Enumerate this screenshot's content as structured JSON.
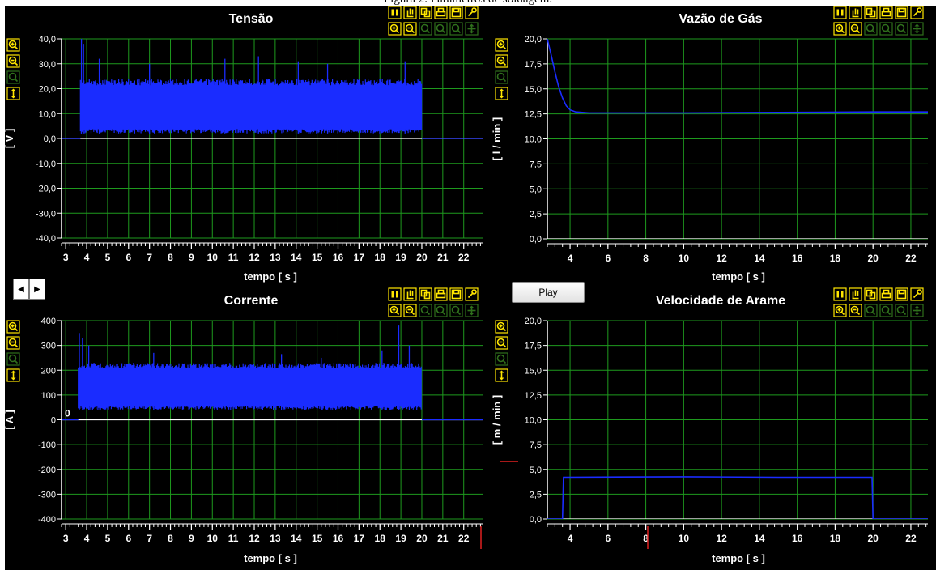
{
  "caption": "Figura 2. Parâmetros de soldagem.",
  "play_label": "Play",
  "scroll": {
    "left_icon": "arrow-left-icon",
    "right_icon": "arrow-right-icon"
  },
  "toolbar_icons": {
    "top": [
      "pause-icon",
      "hand-pan-icon",
      "copy-icon",
      "print-icon",
      "save-icon",
      "wrench-icon"
    ],
    "bottom": [
      "zoom-in-icon",
      "zoom-out-icon",
      "zoom-reset-icon",
      "zoom-box-icon",
      "zoom-fit-icon",
      "move-icon"
    ],
    "side": [
      "zoom-in-icon",
      "zoom-out-icon",
      "zoom-reset-icon",
      "auto-scale-icon"
    ]
  },
  "colors": {
    "background": "#000000",
    "grid": "#1e9a1e",
    "signal": "#1a2cff",
    "zero_line": "#ffffff",
    "text": "#ffffff",
    "toolbar_active": "#ffe600",
    "toolbar_inactive": "#2f6f1c"
  },
  "chart_data": [
    {
      "id": "tensao",
      "type": "line",
      "title": "Tensão",
      "ylabel": "[ V ]",
      "xlabel": "tempo [ s ]",
      "xlim": [
        2.8,
        22.9
      ],
      "ylim": [
        -40,
        40
      ],
      "xticks": [
        3,
        4,
        5,
        6,
        7,
        8,
        9,
        10,
        11,
        12,
        13,
        14,
        15,
        16,
        17,
        18,
        19,
        20,
        21,
        22
      ],
      "xtick_labels": [
        "3",
        "4",
        "5",
        "6",
        "7",
        "8",
        "9",
        "10",
        "11",
        "12",
        "13",
        "14",
        "15",
        "16",
        "17",
        "18",
        "19",
        "20",
        "21",
        "22"
      ],
      "yticks": [
        -40,
        -30,
        -20,
        -10,
        0,
        10,
        20,
        30,
        40
      ],
      "ytick_labels": [
        "-40,0",
        "-30,0",
        "-20,0",
        "-10,0",
        "0,0",
        "10,0",
        "20,0",
        "30,0",
        "40,0"
      ],
      "series": [
        {
          "kind": "band",
          "segments": [
            {
              "x": [
                2.8,
                3.7
              ],
              "low": 0,
              "high": 0
            },
            {
              "x": [
                3.7,
                20.0
              ],
              "low": 2,
              "high": 24,
              "spikes": [
                [
                  3.75,
                  40
                ],
                [
                  3.85,
                  38
                ],
                [
                  4.6,
                  32
                ],
                [
                  7.0,
                  30
                ],
                [
                  10.6,
                  32
                ],
                [
                  12.2,
                  33
                ],
                [
                  14.1,
                  31
                ],
                [
                  15.5,
                  30
                ],
                [
                  19.2,
                  31
                ]
              ]
            },
            {
              "x": [
                20.0,
                22.9
              ],
              "low": 0,
              "high": 0
            }
          ]
        }
      ],
      "grid": true
    },
    {
      "id": "vazao",
      "type": "line",
      "title": "Vazão de Gás",
      "ylabel": "[ l / min ]",
      "xlabel": "tempo [ s ]",
      "xlim": [
        2.8,
        22.9
      ],
      "ylim": [
        0,
        20
      ],
      "xticks": [
        4,
        6,
        8,
        10,
        12,
        14,
        16,
        18,
        20,
        22
      ],
      "xtick_labels": [
        "4",
        "6",
        "8",
        "10",
        "12",
        "14",
        "16",
        "18",
        "20",
        "22"
      ],
      "yticks": [
        0,
        2.5,
        5,
        7.5,
        10,
        12.5,
        15,
        17.5,
        20
      ],
      "ytick_labels": [
        "0,0",
        "2,5",
        "5,0",
        "7,5",
        "10,0",
        "12,5",
        "15,0",
        "17,5",
        "20,0"
      ],
      "series": [
        {
          "kind": "line",
          "x": [
            2.8,
            3.0,
            3.2,
            3.4,
            3.6,
            3.8,
            4.0,
            4.3,
            5,
            10,
            15,
            20,
            22.9
          ],
          "y": [
            20.0,
            18.4,
            16.7,
            15.2,
            14.1,
            13.3,
            12.9,
            12.7,
            12.6,
            12.6,
            12.65,
            12.7,
            12.7
          ]
        }
      ],
      "grid": true
    },
    {
      "id": "corrente",
      "type": "line",
      "title": "Corrente",
      "ylabel": "[ A ]",
      "xlabel": "tempo [ s ]",
      "xlim": [
        2.8,
        22.9
      ],
      "ylim": [
        -400,
        400
      ],
      "xticks": [
        3,
        4,
        5,
        6,
        7,
        8,
        9,
        10,
        11,
        12,
        13,
        14,
        15,
        16,
        17,
        18,
        19,
        20,
        21,
        22
      ],
      "xtick_labels": [
        "3",
        "4",
        "5",
        "6",
        "7",
        "8",
        "9",
        "10",
        "11",
        "12",
        "13",
        "14",
        "15",
        "16",
        "17",
        "18",
        "19",
        "20",
        "21",
        "22"
      ],
      "yticks": [
        -400,
        -300,
        -200,
        -100,
        0,
        100,
        200,
        300,
        400
      ],
      "ytick_labels": [
        "-400",
        "-300",
        "-200",
        "-100",
        "0",
        "100",
        "200",
        "300",
        "400"
      ],
      "annotations": [
        "0"
      ],
      "series": [
        {
          "kind": "band",
          "segments": [
            {
              "x": [
                2.8,
                3.6
              ],
              "low": 0,
              "high": 0
            },
            {
              "x": [
                3.6,
                20.0
              ],
              "low": 40,
              "high": 230,
              "spikes": [
                [
                  3.65,
                  350
                ],
                [
                  3.8,
                  330
                ],
                [
                  4.1,
                  300
                ],
                [
                  7.2,
                  270
                ],
                [
                  13.3,
                  265
                ],
                [
                  15.2,
                  250
                ],
                [
                  18.1,
                  280
                ],
                [
                  18.9,
                  380
                ],
                [
                  19.4,
                  300
                ]
              ]
            },
            {
              "x": [
                20.0,
                22.9
              ],
              "low": 0,
              "high": 0
            }
          ]
        }
      ],
      "grid": true
    },
    {
      "id": "arame",
      "type": "line",
      "title": "Velocidade de Arame",
      "ylabel": "[ m / min ]",
      "xlabel": "tempo [ s ]",
      "xlim": [
        2.8,
        22.9
      ],
      "ylim": [
        0,
        20
      ],
      "xticks": [
        4,
        6,
        8,
        10,
        12,
        14,
        16,
        18,
        20,
        22
      ],
      "xtick_labels": [
        "4",
        "6",
        "8",
        "10",
        "12",
        "14",
        "16",
        "18",
        "20",
        "22"
      ],
      "yticks": [
        0,
        2.5,
        5,
        7.5,
        10,
        12.5,
        15,
        17.5,
        20
      ],
      "ytick_labels": [
        "0,0",
        "2,5",
        "5,0",
        "7,5",
        "10,0",
        "12,5",
        "15,0",
        "17,5",
        "20,0"
      ],
      "series": [
        {
          "kind": "line",
          "x": [
            2.8,
            3.6,
            3.65,
            10,
            15,
            19.95,
            20.0,
            22.9
          ],
          "y": [
            0,
            0,
            4.2,
            4.25,
            4.2,
            4.2,
            0,
            0
          ]
        }
      ],
      "grid": true
    }
  ]
}
